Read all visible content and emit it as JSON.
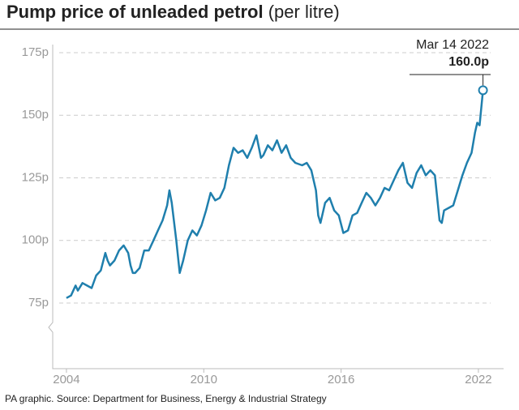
{
  "chart_data": {
    "type": "line",
    "title": "Pump price of unleaded petrol",
    "subtitle": "(per litre)",
    "source": "PA graphic. Source: Department for Business, Energy & Industrial Strategy",
    "annotation": {
      "label": "Mar 14 2022",
      "value_label": "160.0p"
    },
    "xlim": [
      2003.4,
      2023.1
    ],
    "xticks": [
      2004,
      2010,
      2016,
      2022
    ],
    "ylim": [
      50,
      175
    ],
    "yticks": [
      {
        "value": 75,
        "label": "75p"
      },
      {
        "value": 100,
        "label": "100p"
      },
      {
        "value": 125,
        "label": "125p"
      },
      {
        "value": 150,
        "label": "150p"
      },
      {
        "value": 175,
        "label": "175p"
      }
    ],
    "grid": true,
    "x": [
      2004.0,
      2004.2,
      2004.4,
      2004.5,
      2004.7,
      2004.9,
      2005.1,
      2005.3,
      2005.5,
      2005.7,
      2005.8,
      2005.9,
      2006.1,
      2006.3,
      2006.5,
      2006.7,
      2006.8,
      2006.9,
      2007.0,
      2007.2,
      2007.4,
      2007.6,
      2007.8,
      2008.0,
      2008.2,
      2008.4,
      2008.5,
      2008.6,
      2008.8,
      2008.95,
      2009.1,
      2009.3,
      2009.5,
      2009.7,
      2009.9,
      2010.1,
      2010.3,
      2010.5,
      2010.7,
      2010.9,
      2011.1,
      2011.3,
      2011.5,
      2011.7,
      2011.9,
      2012.1,
      2012.3,
      2012.5,
      2012.6,
      2012.8,
      2013.0,
      2013.2,
      2013.4,
      2013.6,
      2013.8,
      2014.0,
      2014.3,
      2014.5,
      2014.7,
      2014.9,
      2015.0,
      2015.1,
      2015.3,
      2015.5,
      2015.7,
      2015.9,
      2016.1,
      2016.3,
      2016.5,
      2016.7,
      2016.9,
      2017.1,
      2017.3,
      2017.5,
      2017.7,
      2017.9,
      2018.1,
      2018.3,
      2018.5,
      2018.7,
      2018.9,
      2019.1,
      2019.3,
      2019.5,
      2019.7,
      2019.9,
      2020.1,
      2020.3,
      2020.4,
      2020.5,
      2020.7,
      2020.9,
      2021.1,
      2021.3,
      2021.5,
      2021.7,
      2021.85,
      2021.95,
      2022.05,
      2022.2
    ],
    "series": [
      {
        "name": "Unleaded petrol",
        "color": "#1f7fad",
        "values": [
          77,
          78,
          82,
          80,
          83,
          82,
          81,
          86,
          88,
          95,
          92,
          90,
          92,
          96,
          98,
          95,
          90,
          87,
          87,
          89,
          96,
          96,
          100,
          104,
          108,
          114,
          120,
          115,
          100,
          87,
          92,
          100,
          104,
          102,
          106,
          112,
          119,
          116,
          117,
          121,
          130,
          137,
          135,
          136,
          133,
          137,
          142,
          133,
          134,
          138,
          136,
          140,
          135,
          138,
          133,
          131,
          130,
          131,
          128,
          120,
          110,
          107,
          115,
          117,
          112,
          110,
          103,
          104,
          110,
          111,
          115,
          119,
          117,
          114,
          117,
          121,
          120,
          124,
          128,
          131,
          123,
          121,
          127,
          130,
          126,
          128,
          126,
          108,
          107,
          112,
          113,
          114,
          120,
          126,
          131,
          135,
          143,
          147,
          146,
          160
        ]
      }
    ]
  }
}
